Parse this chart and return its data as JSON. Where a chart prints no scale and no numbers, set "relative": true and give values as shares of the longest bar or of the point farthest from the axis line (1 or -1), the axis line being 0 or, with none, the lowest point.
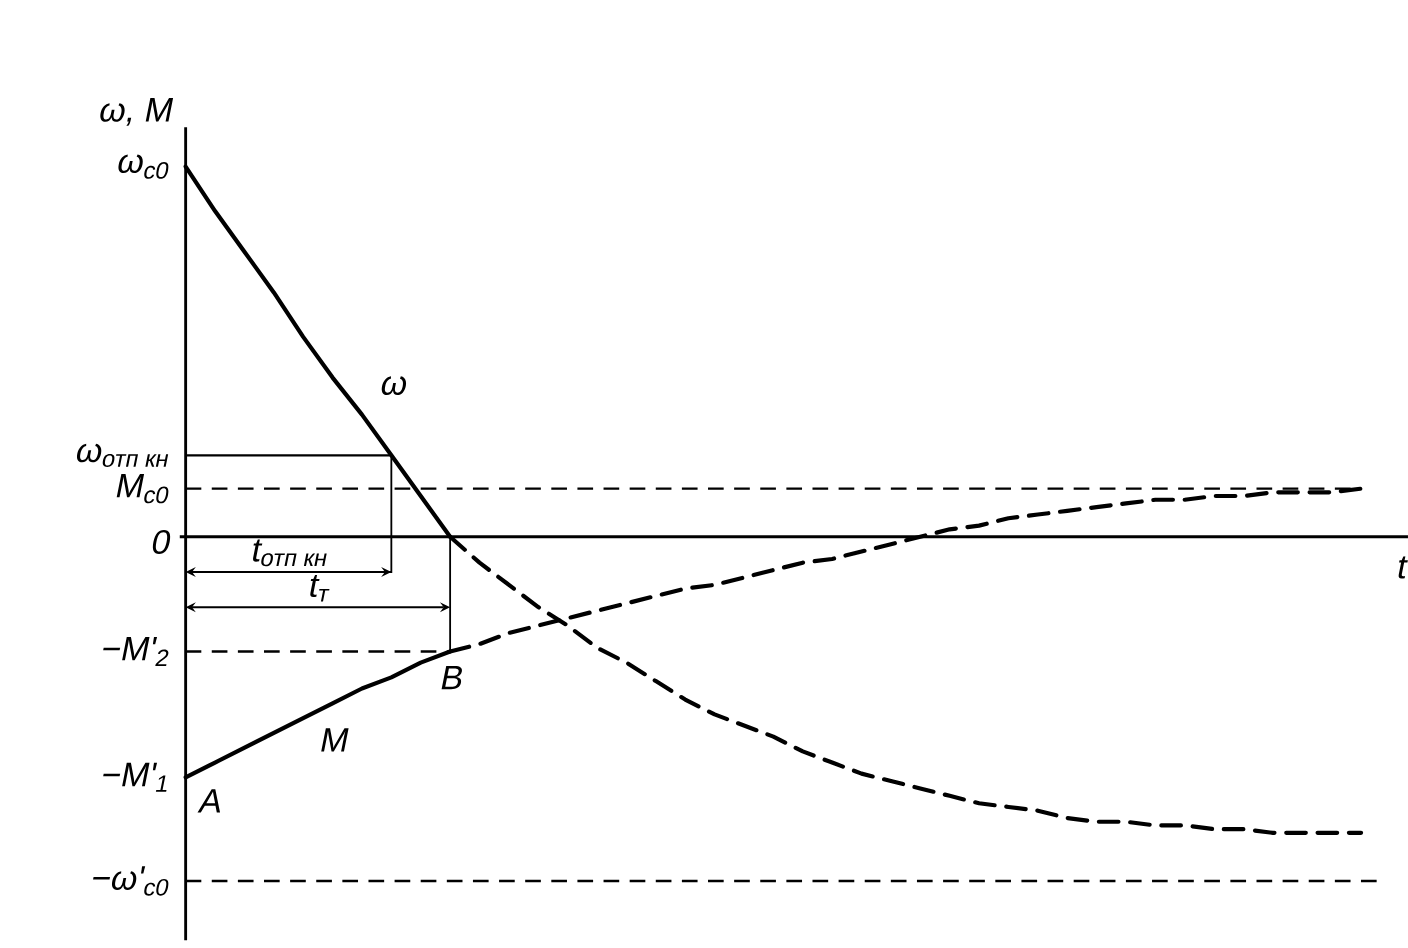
{
  "chart_data": {
    "type": "line",
    "relative": true,
    "xlabel": "t",
    "ylabel": "ω, M",
    "categories": [
      null,
      null,
      null,
      null,
      null,
      null,
      null,
      null,
      null,
      null,
      null,
      null,
      null,
      null,
      null,
      null,
      null,
      null,
      null,
      null,
      null,
      null,
      null,
      null,
      null,
      null,
      null,
      null,
      null,
      null,
      null,
      null,
      null,
      null,
      null,
      null,
      null,
      null,
      null,
      null,
      null
    ],
    "series": [
      {
        "name": "ω",
        "color": "#000000",
        "line_style": "solid",
        "values": [
          1.0,
          0.88,
          0.77,
          0.66,
          0.54,
          0.43,
          0.33,
          0.22,
          0.11,
          0,
          null,
          null,
          null,
          null,
          null,
          null,
          null,
          null,
          null,
          null,
          null,
          null,
          null,
          null,
          null,
          null,
          null,
          null,
          null,
          null,
          null,
          null,
          null,
          null,
          null,
          null,
          null,
          null,
          null,
          null,
          null
        ]
      },
      {
        "color": "#000000",
        "line_style": "dashed",
        "values": [
          null,
          null,
          null,
          null,
          null,
          null,
          null,
          null,
          null,
          0,
          -0.07,
          -0.13,
          -0.19,
          -0.24,
          -0.3,
          -0.34,
          -0.39,
          -0.44,
          -0.48,
          -0.51,
          -0.54,
          -0.58,
          -0.61,
          -0.64,
          -0.66,
          -0.68,
          -0.7,
          -0.72,
          -0.73,
          -0.74,
          -0.76,
          -0.77,
          -0.77,
          -0.78,
          -0.78,
          -0.79,
          -0.79,
          -0.8,
          -0.8,
          -0.8,
          -0.8
        ]
      },
      {
        "name": "M",
        "color": "#000000",
        "line_style": "solid",
        "values": [
          -0.65,
          -0.61,
          -0.57,
          -0.53,
          -0.49,
          -0.45,
          -0.41,
          -0.38,
          -0.34,
          -0.31,
          null,
          null,
          null,
          null,
          null,
          null,
          null,
          null,
          null,
          null,
          null,
          null,
          null,
          null,
          null,
          null,
          null,
          null,
          null,
          null,
          null,
          null,
          null,
          null,
          null,
          null,
          null,
          null,
          null,
          null,
          null
        ]
      },
      {
        "color": "#000000",
        "line_style": "dashed",
        "values": [
          null,
          null,
          null,
          null,
          null,
          null,
          null,
          null,
          null,
          -0.31,
          -0.29,
          -0.26,
          -0.24,
          -0.22,
          -0.2,
          -0.18,
          -0.16,
          -0.14,
          -0.13,
          -0.11,
          -0.09,
          -0.07,
          -0.06,
          -0.04,
          -0.02,
          0,
          0.02,
          0.03,
          0.05,
          0.06,
          0.07,
          0.08,
          0.09,
          0.1,
          0.1,
          0.11,
          0.11,
          0.12,
          0.12,
          0.12,
          0.13
        ]
      }
    ],
    "ref_lines": [
      {
        "axis": "y",
        "value": 0.22,
        "label": "ω$_{отп кн}$",
        "line_style": "solid"
      },
      {
        "axis": "y",
        "value": 0.13,
        "label": "M$_{с0}$",
        "line_style": "dashed"
      },
      {
        "axis": "y",
        "value": -0.31,
        "label": "−M'$_{2}$",
        "line_style": "dashed"
      },
      {
        "axis": "y",
        "value": -0.93,
        "label": "−ω'$_{с0}$",
        "line_style": "dashed"
      }
    ],
    "annotations": [
      "ω$_{с0}$",
      "0",
      "−M'$_{1}$",
      "A",
      "B",
      "t$_{отп кн}$",
      "t$_{т}$"
    ]
  }
}
